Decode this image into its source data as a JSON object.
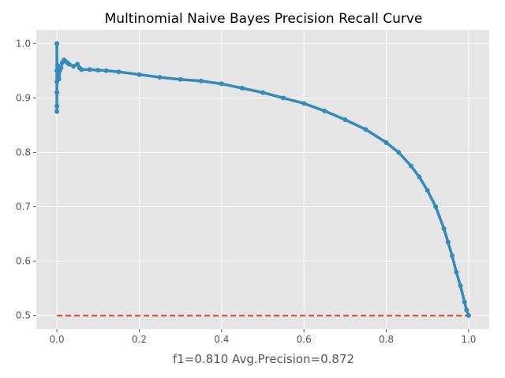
{
  "chart_data": {
    "type": "line",
    "title": "Multinomial Naive Bayes Precision Recall Curve",
    "xlabel": "f1=0.810  Avg.Precision=0.872",
    "ylabel": "",
    "xlim": [
      -0.05,
      1.05
    ],
    "ylim": [
      0.475,
      1.025
    ],
    "xticks": [
      0.0,
      0.2,
      0.4,
      0.6,
      0.8,
      1.0
    ],
    "xtick_labels": [
      "0.0",
      "0.2",
      "0.4",
      "0.6",
      "0.8",
      "1.0"
    ],
    "yticks": [
      0.5,
      0.6,
      0.7,
      0.8,
      0.9,
      1.0
    ],
    "ytick_labels": [
      "0.5",
      "0.6",
      "0.7",
      "0.8",
      "0.9",
      "1.0"
    ],
    "grid": true,
    "legend": "none",
    "colors": {
      "curve": "#348ABD",
      "baseline": "#E24A33",
      "plot_background": "#E5E5E5",
      "grid": "#FFFFFF"
    },
    "series": [
      {
        "values_x": [
          0.0,
          0.0,
          0.0,
          0.0,
          0.0,
          0.0,
          0.002,
          0.003,
          0.005,
          0.007,
          0.01,
          0.013,
          0.017,
          0.02,
          0.025,
          0.03,
          0.04,
          0.05,
          0.055,
          0.06,
          0.08,
          0.1,
          0.12,
          0.15,
          0.2,
          0.25,
          0.3,
          0.35,
          0.4,
          0.45,
          0.5,
          0.55,
          0.6,
          0.65,
          0.7,
          0.75,
          0.8,
          0.83,
          0.86,
          0.88,
          0.9,
          0.92,
          0.94,
          0.95,
          0.96,
          0.97,
          0.98,
          0.99,
          0.995,
          1.0
        ],
        "values_y": [
          1.0,
          0.875,
          0.885,
          0.91,
          0.93,
          0.95,
          0.96,
          0.945,
          0.935,
          0.95,
          0.955,
          0.965,
          0.97,
          0.968,
          0.965,
          0.962,
          0.958,
          0.962,
          0.955,
          0.952,
          0.952,
          0.951,
          0.95,
          0.948,
          0.943,
          0.938,
          0.934,
          0.931,
          0.926,
          0.918,
          0.91,
          0.9,
          0.89,
          0.876,
          0.86,
          0.842,
          0.818,
          0.8,
          0.775,
          0.755,
          0.73,
          0.7,
          0.66,
          0.635,
          0.61,
          0.58,
          0.555,
          0.525,
          0.51,
          0.5
        ]
      },
      {
        "style": "dashed",
        "values_x": [
          0.0,
          1.0
        ],
        "values_y": [
          0.5,
          0.5
        ]
      }
    ]
  }
}
